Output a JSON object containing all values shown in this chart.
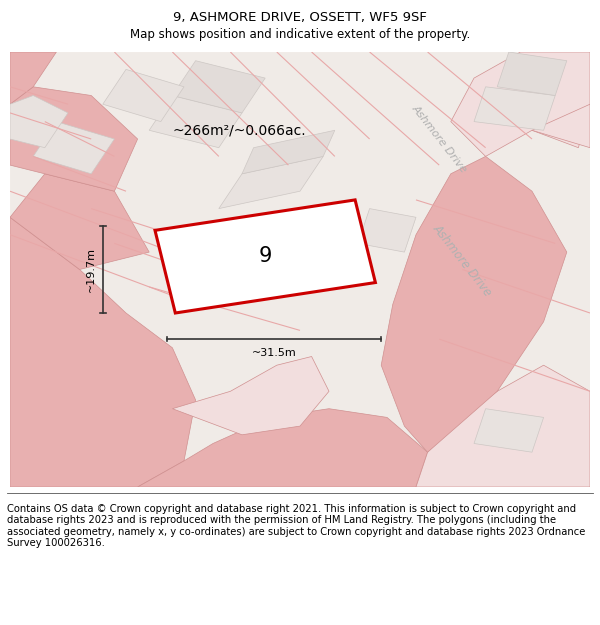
{
  "title": "9, ASHMORE DRIVE, OSSETT, WF5 9SF",
  "subtitle": "Map shows position and indicative extent of the property.",
  "area_text": "~266m²/~0.066ac.",
  "width_text": "~31.5m",
  "height_text": "~19.7m",
  "house_number": "9",
  "road_label_upper": "Ashmore Drive",
  "road_label_lower": "Ashmore Drive",
  "footer": "Contains OS data © Crown copyright and database right 2021. This information is subject to Crown copyright and database rights 2023 and is reproduced with the permission of HM Land Registry. The polygons (including the associated geometry, namely x, y co-ordinates) are subject to Crown copyright and database rights 2023 Ordnance Survey 100026316.",
  "map_bg": "#f0ebe8",
  "plot_outline_color": "#cc0000",
  "pink_heavy": "#e8b0b0",
  "pink_light": "#f2dede",
  "bld_fill": "#e8e2df",
  "line_color": "#e8a8a8",
  "footer_fontsize": 7.2,
  "title_fontsize": 9.5,
  "subtitle_fontsize": 8.5
}
